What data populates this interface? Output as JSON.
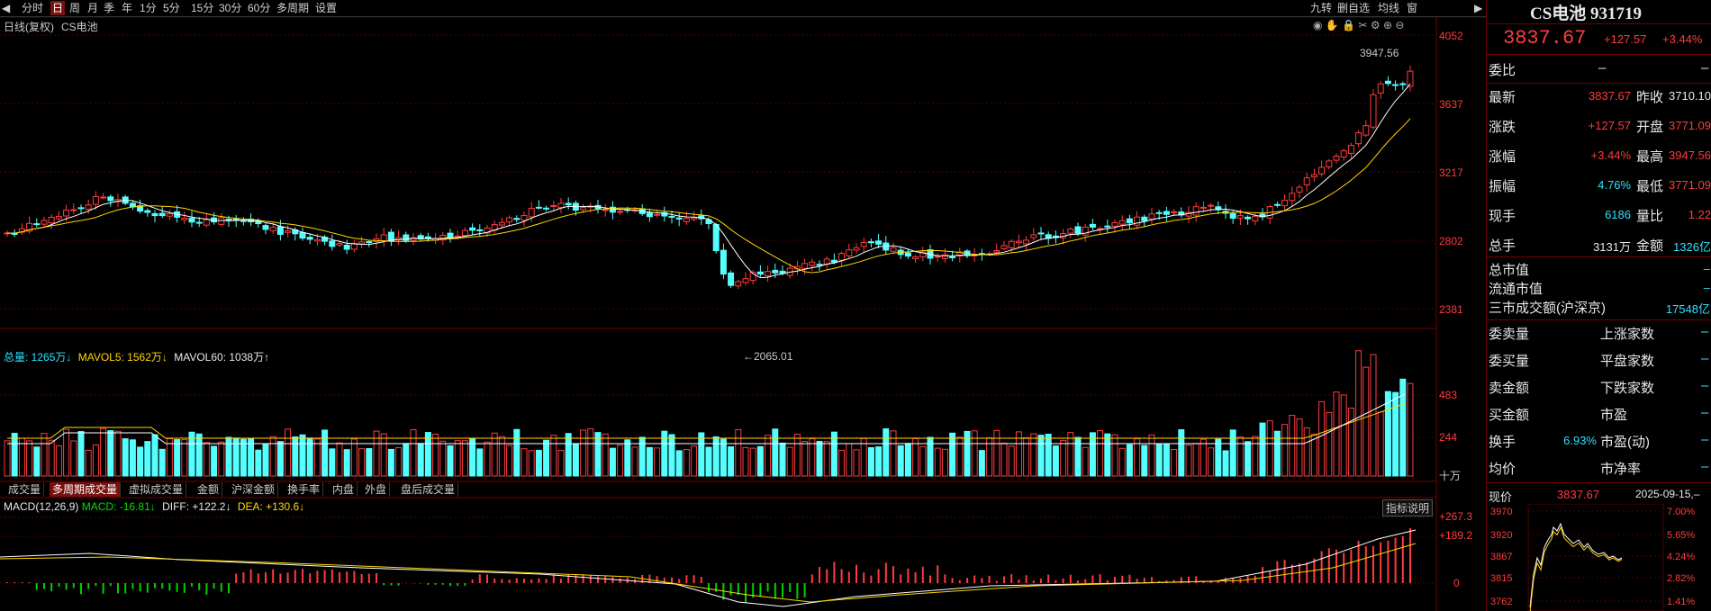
{
  "toolbar": {
    "left_items": [
      "分时",
      "日",
      "周",
      "月",
      "季",
      "年",
      "1分",
      "5分",
      "15分",
      "30分",
      "60分",
      "多周期",
      "设置"
    ],
    "active": "日",
    "right_items": [
      "九转",
      "删自选",
      "均线",
      "窗"
    ]
  },
  "chart": {
    "header_label": "日线(复权)",
    "name": "CS电池",
    "y_ticks": [
      "4052",
      "3637",
      "3217",
      "2802",
      "2381"
    ],
    "high_label": "3947.56",
    "low_label": "2065.01",
    "vol_header": {
      "total": "总量: 1265万↓",
      "mavol5": "MAVOL5: 1562万↓",
      "mavol60": "MAVOL60: 1038万↑"
    },
    "vol_ticks": [
      "483",
      "244",
      "十万"
    ],
    "tabs": [
      "成交量",
      "多周期成交量",
      "虚拟成交量",
      "金额",
      "沪深金额",
      "换手率",
      "内盘",
      "外盘",
      "盘后成交量"
    ],
    "active_tab": "多周期成交量",
    "macd_header": {
      "title": "MACD(12,26,9)",
      "macd": "MACD: -16.81↓",
      "diff": "DIFF: +122.2↓",
      "dea": "DEA: +130.6↓"
    },
    "macd_btn": "指标说明",
    "macd_ticks": [
      "+267.3",
      "+189.2",
      "0"
    ]
  },
  "panel": {
    "title": "CS电池 931719",
    "price": "3837.67",
    "change": "+127.57",
    "pct": "+3.44%",
    "weibi_label": "委比",
    "weibi_val": "–",
    "weibi_val2": "–",
    "quote_rows": [
      {
        "l1": "最新",
        "v1": "3837.67",
        "c1": "red",
        "l2": "昨收",
        "v2": "3710.10",
        "c2": "wht"
      },
      {
        "l1": "涨跌",
        "v1": "+127.57",
        "c1": "red",
        "l2": "开盘",
        "v2": "3771.09",
        "c2": "red"
      },
      {
        "l1": "涨幅",
        "v1": "+3.44%",
        "c1": "red",
        "l2": "最高",
        "v2": "3947.56",
        "c2": "red"
      },
      {
        "l1": "振幅",
        "v1": "4.76%",
        "c1": "cyan",
        "l2": "最低",
        "v2": "3771.09",
        "c2": "red"
      },
      {
        "l1": "现手",
        "v1": "6186",
        "c1": "cyan",
        "l2": "量比",
        "v2": "1.22",
        "c2": "red"
      },
      {
        "l1": "总手",
        "v1": "3131万",
        "c1": "wht",
        "l2": "金额",
        "v2": "1326亿",
        "c2": "cyan"
      }
    ],
    "mkt_rows": [
      {
        "l": "总市值",
        "v": "–"
      },
      {
        "l": "流通市值",
        "v": "–"
      },
      {
        "l": "三市成交额(沪深京)",
        "v": "17548亿"
      }
    ],
    "stat_left": [
      "委卖量",
      "委买量",
      "卖金额",
      "买金额",
      "换手",
      "均价"
    ],
    "stat_left_vals": [
      "",
      "",
      "",
      "",
      "6.93%",
      ""
    ],
    "stat_right": [
      "上涨家数",
      "平盘家数",
      "下跌家数",
      "市盈",
      "市盈(动)",
      "市净率"
    ],
    "mini": {
      "label": "现价",
      "price": "3837.67",
      "date": "2025-09-15,–",
      "left_ticks": [
        "3970",
        "3920",
        "3867",
        "3815",
        "3762"
      ],
      "right_ticks": [
        "7.00%",
        "5.65%",
        "4.24%",
        "2.82%",
        "1.41%"
      ]
    }
  },
  "colors": {
    "up": "#ff3c3c",
    "down": "#54ffff",
    "ma5": "#ffffff",
    "ma10": "#ffd700",
    "bg": "#000000"
  }
}
